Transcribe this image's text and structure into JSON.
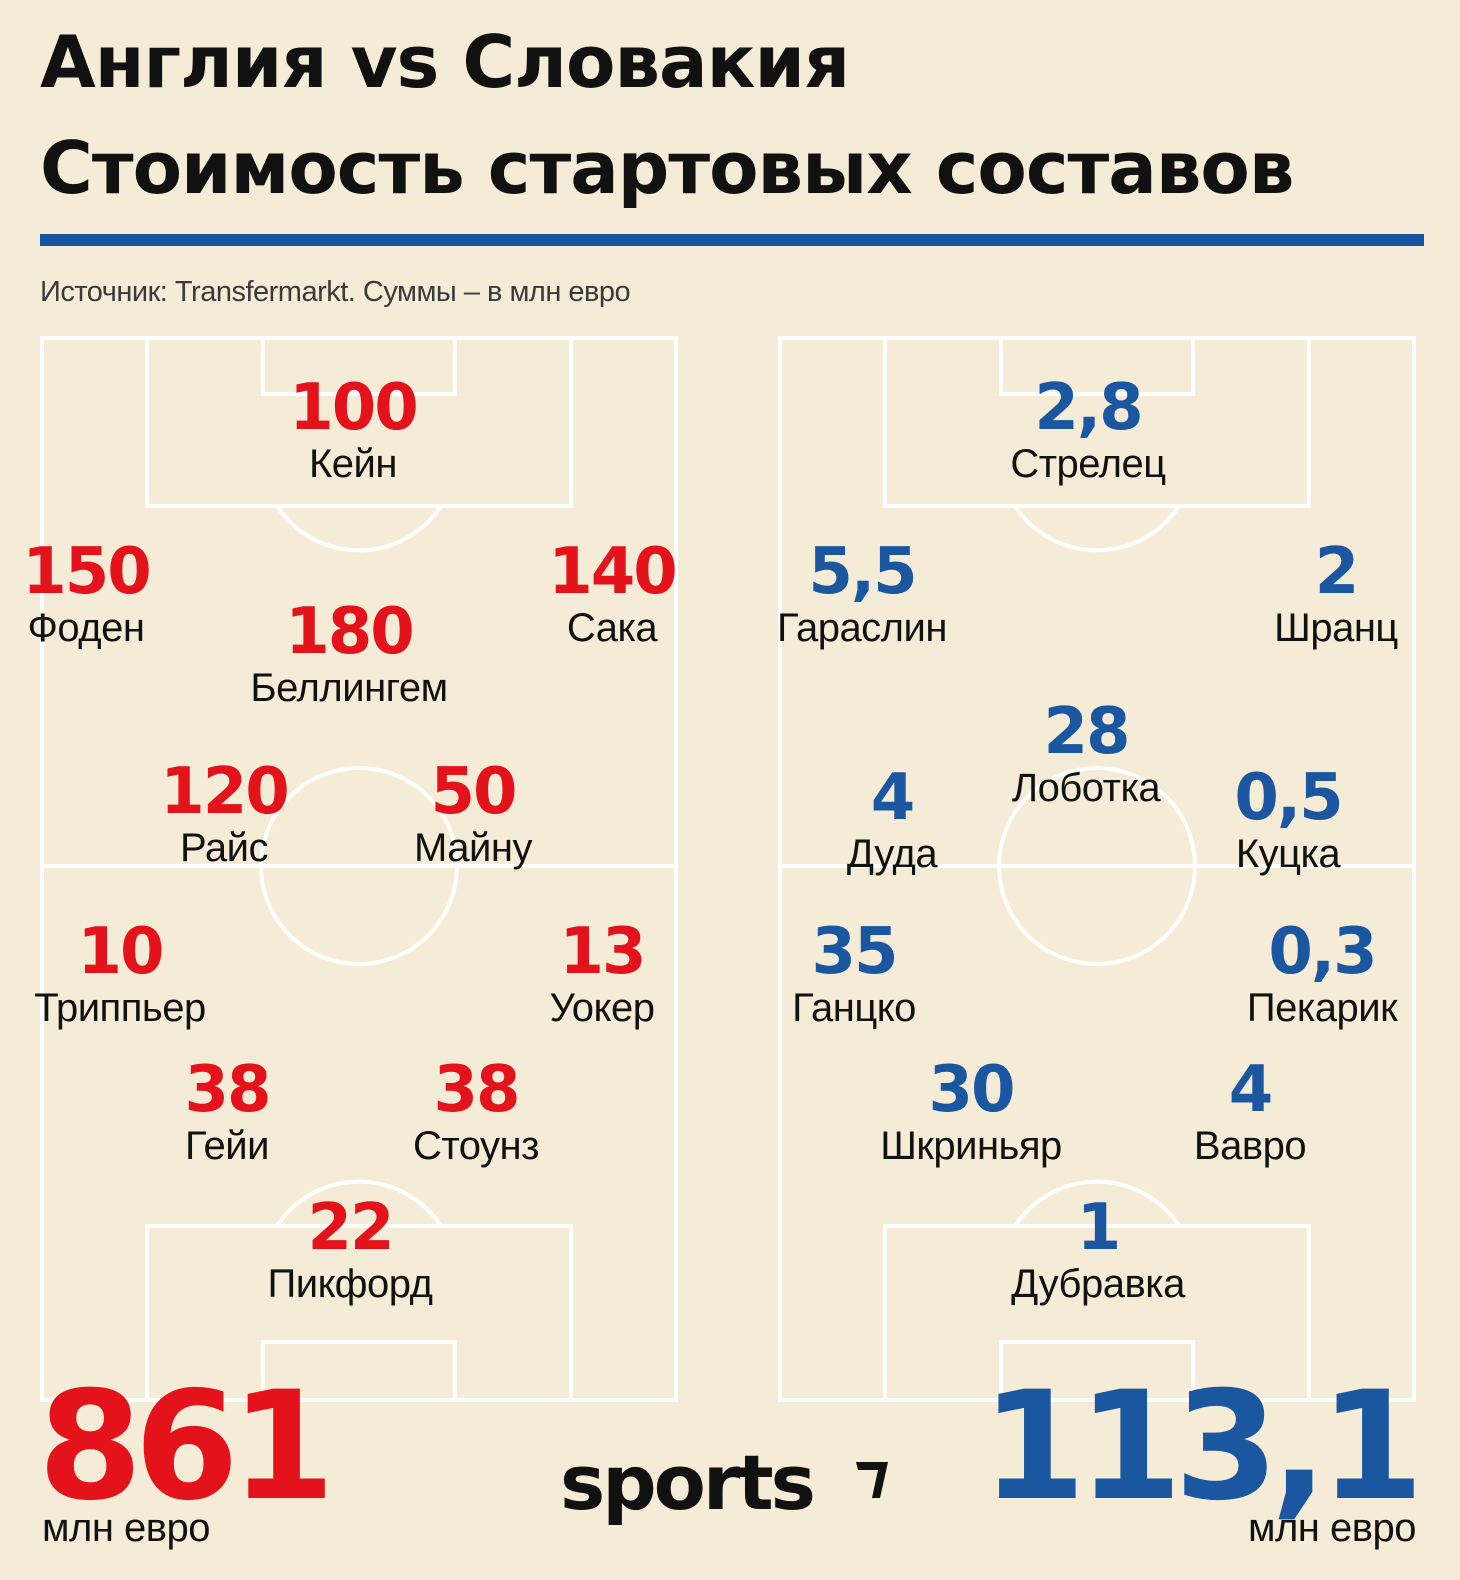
{
  "header": {
    "title_line1": "Англия vs Словакия",
    "title_line2": "Стоимость стартовых составов",
    "source": "Источник: Transfermarkt. Суммы – в млн евро"
  },
  "colors": {
    "england": "#e3121b",
    "slovakia": "#1b56a0",
    "background": "#f5ecd7",
    "pitch_lines": "#ffffff"
  },
  "england": {
    "total": "861",
    "unit": "млн евро",
    "players": [
      {
        "value": "100",
        "name": "Кейн"
      },
      {
        "value": "150",
        "name": "Фоден"
      },
      {
        "value": "180",
        "name": "Беллингем"
      },
      {
        "value": "140",
        "name": "Сака"
      },
      {
        "value": "120",
        "name": "Райс"
      },
      {
        "value": "50",
        "name": "Майну"
      },
      {
        "value": "10",
        "name": "Триппьер"
      },
      {
        "value": "13",
        "name": "Уокер"
      },
      {
        "value": "38",
        "name": "Гейи"
      },
      {
        "value": "38",
        "name": "Стоунз"
      },
      {
        "value": "22",
        "name": "Пикфорд"
      }
    ]
  },
  "slovakia": {
    "total": "113,1",
    "unit": "млн евро",
    "players": [
      {
        "value": "2,8",
        "name": "Стрелец"
      },
      {
        "value": "5,5",
        "name": "Гараслин"
      },
      {
        "value": "2",
        "name": "Шранц"
      },
      {
        "value": "28",
        "name": "Лоботка"
      },
      {
        "value": "4",
        "name": "Дуда"
      },
      {
        "value": "0,5",
        "name": "Куцка"
      },
      {
        "value": "35",
        "name": "Ганцко"
      },
      {
        "value": "0,3",
        "name": "Пекарик"
      },
      {
        "value": "30",
        "name": "Шкриньяр"
      },
      {
        "value": "4",
        "name": "Вавро"
      },
      {
        "value": "1",
        "name": "Дубравка"
      }
    ]
  },
  "logo": {
    "text": "sports"
  }
}
